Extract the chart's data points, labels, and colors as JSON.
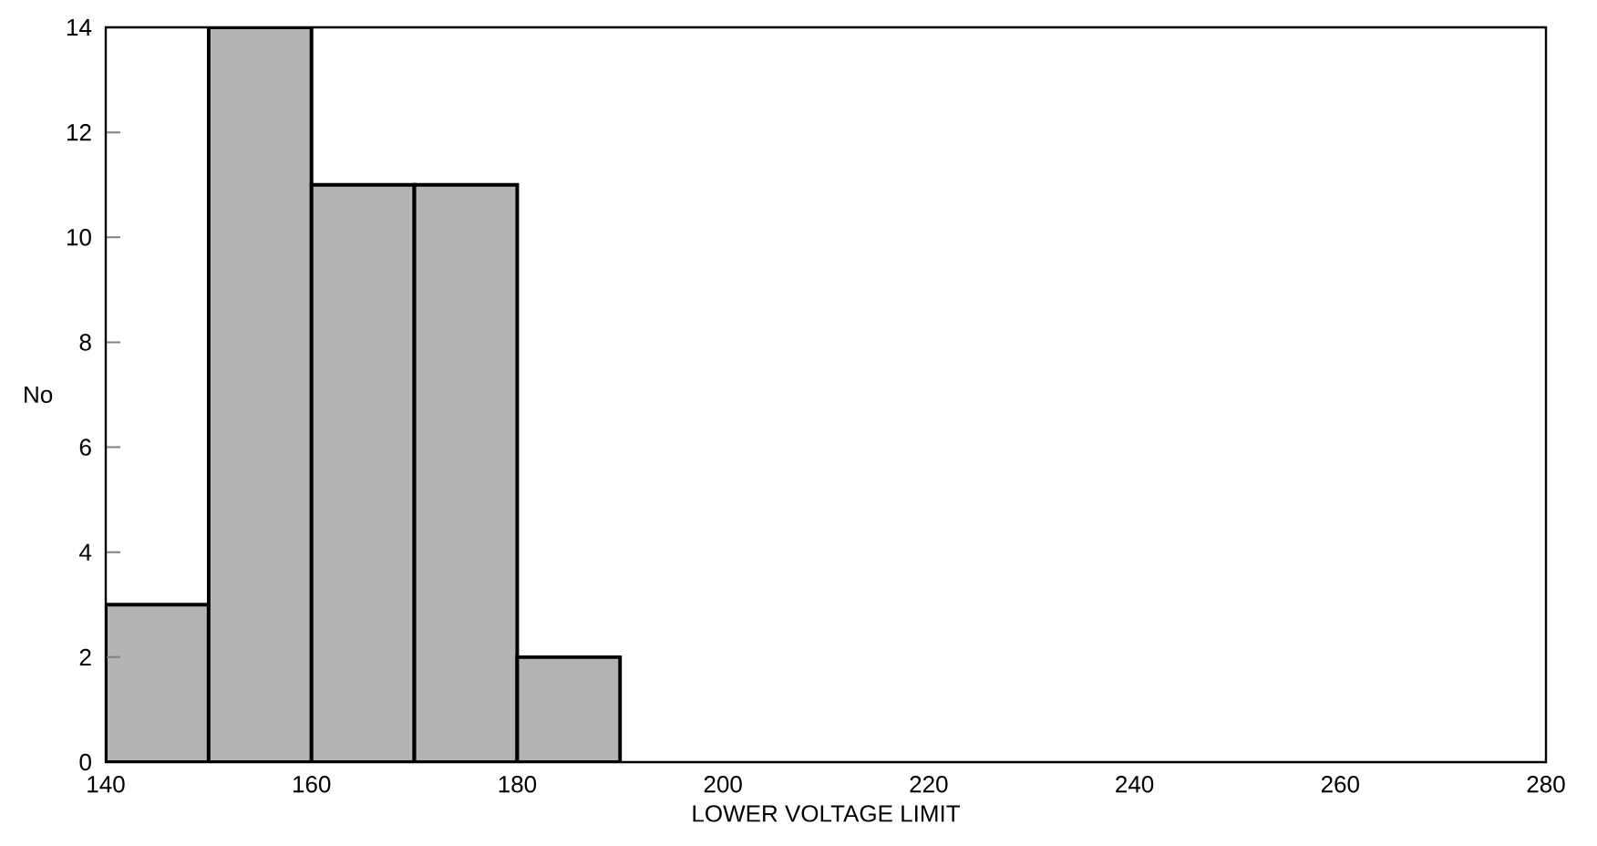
{
  "chart_data": {
    "type": "histogram",
    "xlabel": "LOWER VOLTAGE LIMIT",
    "ylabel": "No",
    "bins": [
      140,
      150,
      160,
      170,
      180,
      190
    ],
    "values": [
      3,
      14,
      11,
      11,
      2
    ],
    "color": "#b4b4b4",
    "xlim": [
      140,
      280
    ],
    "xticks": [
      140,
      160,
      180,
      200,
      220,
      240,
      260,
      280
    ],
    "ylim": [
      0,
      14
    ],
    "yticks": [
      0,
      2,
      4,
      6,
      8,
      10,
      12,
      14
    ],
    "grid": false
  }
}
